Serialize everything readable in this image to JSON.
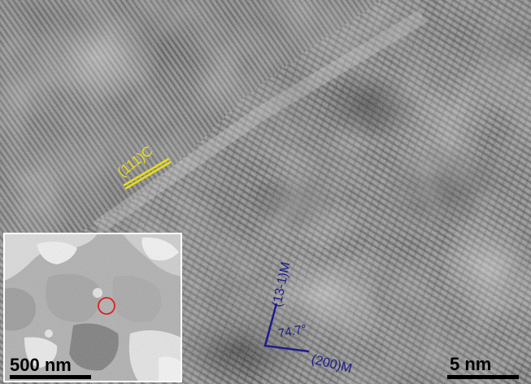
{
  "image": {
    "description_type": "high-resolution transmission electron micrograph with lattice fringes and inset overview",
    "background_tone": "grayscale"
  },
  "annotations": {
    "plane_c": {
      "text": "(111)C",
      "color": "#e8dd1a"
    },
    "plane_m_upper": {
      "text": "(13-1)M",
      "color": "#1c1c8c"
    },
    "angle": {
      "text": "74.7°",
      "color": "#1c1c8c"
    },
    "plane_m_lower": {
      "text": "(200)M",
      "color": "#1c1c8c"
    }
  },
  "scale_bars": {
    "main": {
      "text": "5 nm",
      "color": "#000000"
    },
    "inset": {
      "text": "500 nm",
      "color": "#000000"
    }
  },
  "inset": {
    "marker": {
      "shape": "circle",
      "color": "#e02020"
    }
  }
}
